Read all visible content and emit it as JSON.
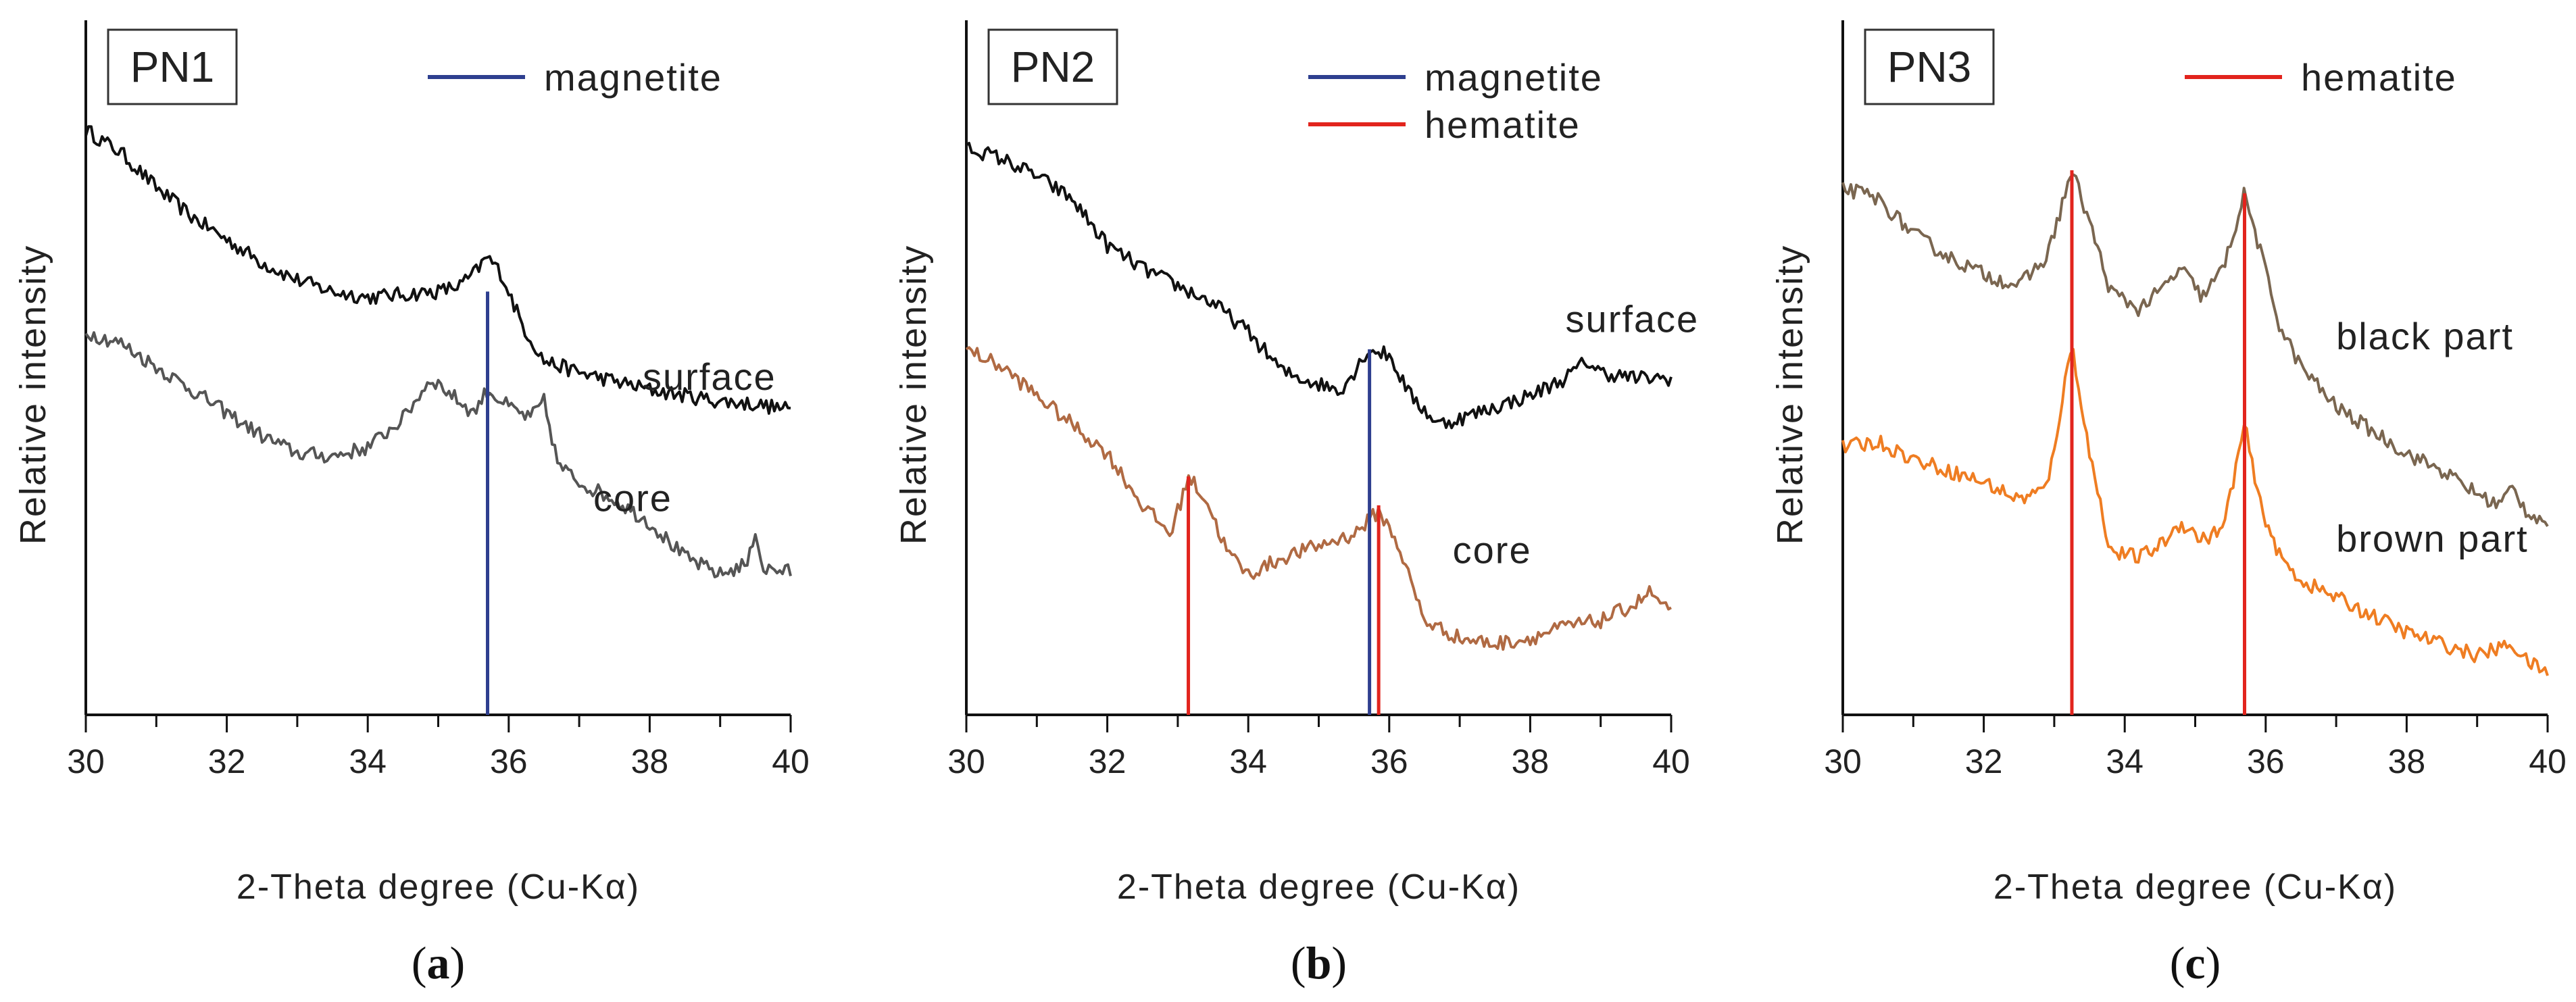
{
  "chart_data": [
    {
      "type": "line",
      "panel_label": "PN1",
      "caption": "a",
      "xlabel": "2-Theta degree (Cu-Kα)",
      "ylabel": "Relative intensity",
      "xlim": [
        30,
        40
      ],
      "xticks": [
        30,
        32,
        34,
        36,
        38,
        40
      ],
      "ylim": [
        0,
        100
      ],
      "legend": [
        {
          "label": "magnetite",
          "color": "#2e3f8f"
        }
      ],
      "reference_lines": [
        {
          "mineral": "magnetite",
          "x": 35.7,
          "y_top": 70,
          "color": "#2e3f8f"
        }
      ],
      "series": [
        {
          "name": "surface",
          "label_x": 37.9,
          "label_y": 53,
          "color": "#111111",
          "points": [
            [
              30,
              98
            ],
            [
              30.5,
              94
            ],
            [
              31,
              88
            ],
            [
              31.5,
              83
            ],
            [
              32,
              79
            ],
            [
              32.5,
              75
            ],
            [
              33,
              72
            ],
            [
              33.5,
              70
            ],
            [
              34,
              69
            ],
            [
              34.5,
              69.5
            ],
            [
              35,
              70
            ],
            [
              35.3,
              71
            ],
            [
              35.5,
              73
            ],
            [
              35.7,
              76
            ],
            [
              35.9,
              73
            ],
            [
              36.2,
              64
            ],
            [
              36.5,
              58
            ],
            [
              37,
              56
            ],
            [
              37.5,
              54.5
            ],
            [
              38,
              53
            ],
            [
              38.5,
              52
            ],
            [
              39,
              51
            ],
            [
              39.5,
              50.5
            ],
            [
              40,
              49.5
            ]
          ]
        },
        {
          "name": "core",
          "label_x": 37.2,
          "label_y": 32,
          "color": "#555555",
          "points": [
            [
              30,
              63
            ],
            [
              30.5,
              61
            ],
            [
              31,
              57
            ],
            [
              31.5,
              53
            ],
            [
              32,
              49
            ],
            [
              32.5,
              45
            ],
            [
              33,
              42
            ],
            [
              33.5,
              41.5
            ],
            [
              34,
              43
            ],
            [
              34.5,
              48
            ],
            [
              34.9,
              55
            ],
            [
              35.2,
              52
            ],
            [
              35.5,
              49
            ],
            [
              35.7,
              53
            ],
            [
              36,
              50
            ],
            [
              36.3,
              48
            ],
            [
              36.5,
              51
            ],
            [
              36.7,
              40
            ],
            [
              37,
              37
            ],
            [
              37.5,
              34
            ],
            [
              38,
              30
            ],
            [
              38.5,
              24
            ],
            [
              39,
              21
            ],
            [
              39.4,
              23
            ],
            [
              39.5,
              29
            ],
            [
              39.6,
              22
            ],
            [
              40,
              21.5
            ]
          ]
        }
      ]
    },
    {
      "type": "line",
      "panel_label": "PN2",
      "caption": "b",
      "xlabel": "2-Theta degree (Cu-Kα)",
      "ylabel": "Relative intensity",
      "xlim": [
        30,
        40
      ],
      "xticks": [
        30,
        32,
        34,
        36,
        38,
        40
      ],
      "ylim": [
        0,
        100
      ],
      "legend": [
        {
          "label": "magnetite",
          "color": "#2e3f8f"
        },
        {
          "label": "hematite",
          "color": "#e2241d"
        }
      ],
      "reference_lines": [
        {
          "mineral": "hematite",
          "x": 33.15,
          "y_top": 38,
          "color": "#e2241d"
        },
        {
          "mineral": "magnetite",
          "x": 35.72,
          "y_top": 60,
          "color": "#2e3f8f"
        },
        {
          "mineral": "hematite",
          "x": 35.85,
          "y_top": 33,
          "color": "#e2241d"
        }
      ],
      "series": [
        {
          "name": "surface",
          "label_x": 38.5,
          "label_y": 63,
          "color": "#111111",
          "points": [
            [
              30,
              95
            ],
            [
              30.5,
              93
            ],
            [
              31,
              90
            ],
            [
              31.5,
              86
            ],
            [
              32,
              78
            ],
            [
              32.5,
              74
            ],
            [
              33,
              71
            ],
            [
              33.5,
              68
            ],
            [
              34,
              63
            ],
            [
              34.5,
              56
            ],
            [
              35,
              54
            ],
            [
              35.3,
              53
            ],
            [
              35.5,
              56
            ],
            [
              35.7,
              60
            ],
            [
              36,
              59
            ],
            [
              36.3,
              52
            ],
            [
              36.7,
              47
            ],
            [
              37,
              48
            ],
            [
              37.5,
              50
            ],
            [
              38,
              52
            ],
            [
              38.5,
              55
            ],
            [
              38.8,
              58
            ],
            [
              39,
              56
            ],
            [
              39.5,
              55
            ],
            [
              40,
              55
            ]
          ]
        },
        {
          "name": "core",
          "label_x": 36.9,
          "label_y": 23,
          "color": "#b06a43",
          "points": [
            [
              30,
              60
            ],
            [
              30.5,
              57
            ],
            [
              31,
              52
            ],
            [
              31.5,
              47
            ],
            [
              32,
              42
            ],
            [
              32.5,
              33
            ],
            [
              32.9,
              28
            ],
            [
              33.15,
              38
            ],
            [
              33.4,
              34
            ],
            [
              33.7,
              25
            ],
            [
              34,
              21
            ],
            [
              34.5,
              24
            ],
            [
              35,
              26
            ],
            [
              35.5,
              28
            ],
            [
              35.85,
              32
            ],
            [
              36.1,
              27
            ],
            [
              36.5,
              13
            ],
            [
              37,
              10
            ],
            [
              37.5,
              9
            ],
            [
              38,
              10
            ],
            [
              38.5,
              12
            ],
            [
              39,
              13
            ],
            [
              39.5,
              16
            ],
            [
              39.7,
              18
            ],
            [
              40,
              14
            ]
          ]
        }
      ]
    },
    {
      "type": "line",
      "panel_label": "PN3",
      "caption": "c",
      "xlabel": "2-Theta degree (Cu-Kα)",
      "ylabel": "Relative intensity",
      "xlim": [
        30,
        40
      ],
      "xticks": [
        30,
        32,
        34,
        36,
        38,
        40
      ],
      "ylim": [
        0,
        100
      ],
      "legend": [
        {
          "label": "hematite",
          "color": "#e2241d"
        }
      ],
      "reference_lines": [
        {
          "mineral": "hematite",
          "x": 33.25,
          "y_top": 91,
          "color": "#e2241d"
        },
        {
          "mineral": "hematite",
          "x": 35.7,
          "y_top": 87,
          "color": "#e2241d"
        }
      ],
      "series": [
        {
          "name": "black part",
          "label_x": 37.0,
          "label_y": 60,
          "color": "#7a6650",
          "points": [
            [
              30,
              88
            ],
            [
              30.5,
              86
            ],
            [
              31,
              80
            ],
            [
              31.5,
              76
            ],
            [
              32,
              73
            ],
            [
              32.5,
              71
            ],
            [
              32.9,
              76
            ],
            [
              33.25,
              91
            ],
            [
              33.5,
              82
            ],
            [
              33.8,
              70
            ],
            [
              34.2,
              67
            ],
            [
              34.5,
              70
            ],
            [
              34.8,
              74
            ],
            [
              35.1,
              69
            ],
            [
              35.4,
              74
            ],
            [
              35.7,
              87
            ],
            [
              35.9,
              78
            ],
            [
              36.2,
              64
            ],
            [
              36.5,
              57
            ],
            [
              37,
              50
            ],
            [
              37.5,
              46
            ],
            [
              38,
              42
            ],
            [
              38.5,
              39
            ],
            [
              39,
              35
            ],
            [
              39.3,
              33
            ],
            [
              39.5,
              36
            ],
            [
              39.7,
              32
            ],
            [
              40,
              30
            ]
          ]
        },
        {
          "name": "brown part",
          "label_x": 37.0,
          "label_y": 25,
          "color": "#ef7d22",
          "points": [
            [
              30,
              43
            ],
            [
              30.5,
              44
            ],
            [
              31,
              41
            ],
            [
              31.5,
              39
            ],
            [
              32,
              37
            ],
            [
              32.5,
              34
            ],
            [
              32.9,
              36
            ],
            [
              33.25,
              61
            ],
            [
              33.5,
              42
            ],
            [
              33.8,
              25
            ],
            [
              34.2,
              24
            ],
            [
              34.5,
              26
            ],
            [
              34.8,
              30
            ],
            [
              35.1,
              27
            ],
            [
              35.4,
              29
            ],
            [
              35.7,
              47
            ],
            [
              35.9,
              34
            ],
            [
              36.2,
              24
            ],
            [
              36.5,
              20
            ],
            [
              37,
              17
            ],
            [
              37.5,
              14
            ],
            [
              38,
              11
            ],
            [
              38.5,
              9
            ],
            [
              39,
              7
            ],
            [
              39.5,
              9
            ],
            [
              39.7,
              6
            ],
            [
              40,
              4
            ]
          ]
        }
      ]
    }
  ]
}
